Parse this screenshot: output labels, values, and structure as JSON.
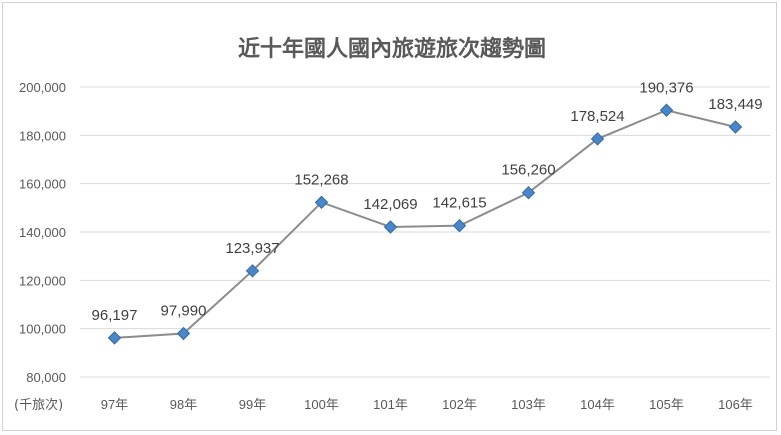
{
  "chart_data": {
    "type": "line",
    "title": "近十年國人國內旅遊旅次趨勢圖",
    "categories": [
      "97年",
      "98年",
      "99年",
      "100年",
      "101年",
      "102年",
      "103年",
      "104年",
      "105年",
      "106年"
    ],
    "series": [
      {
        "values": [
          96197,
          97990,
          123937,
          152268,
          142069,
          142615,
          156260,
          178524,
          190376,
          183449
        ],
        "labels": [
          "96,197",
          "97,990",
          "123,937",
          "152,268",
          "142,069",
          "142,615",
          "156,260",
          "178,524",
          "190,376",
          "183,449"
        ]
      }
    ],
    "ylabel": "(千旅次)",
    "ylim": [
      80000,
      200000
    ],
    "yticks": [
      80000,
      100000,
      120000,
      140000,
      160000,
      180000,
      200000
    ],
    "ytick_labels": [
      "80,000",
      "100,000",
      "120,000",
      "140,000",
      "160,000",
      "180,000",
      "200,000"
    ],
    "grid": true,
    "legend": "none",
    "colors": {
      "line": "#8c8c8c",
      "marker": "#4a86c8",
      "marker_edge": "#2f6aa8",
      "grid": "#d9d9d9"
    }
  }
}
